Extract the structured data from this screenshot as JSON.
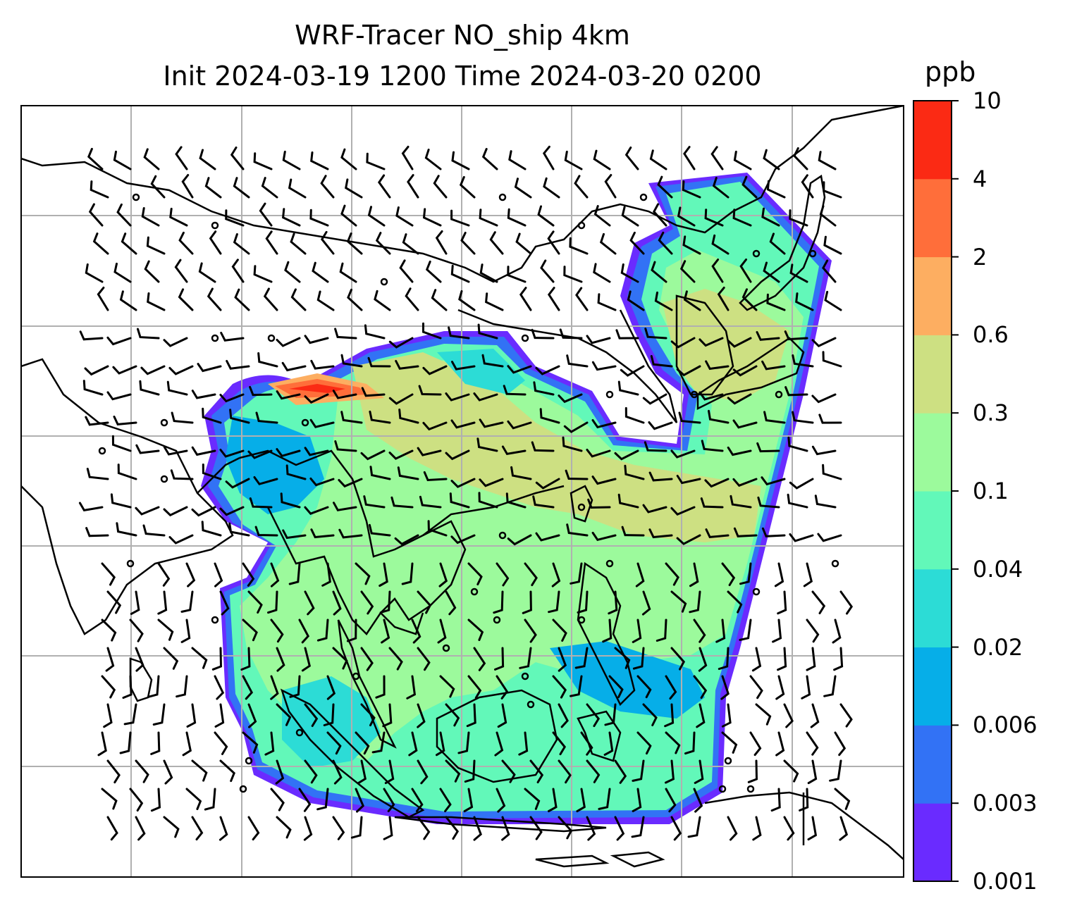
{
  "figure": {
    "title_line1": "WRF-Tracer NO_ship 4km",
    "title_line2": "Init 2024-03-19 1200 Time 2024-03-20 0200"
  },
  "colorbar": {
    "title": "ppb",
    "levels": [
      "0.001",
      "0.003",
      "0.006",
      "0.02",
      "0.04",
      "0.1",
      "0.3",
      "0.6",
      "2",
      "4",
      "10"
    ],
    "colors": [
      "#6a2bff",
      "#3272f5",
      "#06aee8",
      "#2cdcd6",
      "#62f8b9",
      "#9cfa9c",
      "#cde082",
      "#fdae61",
      "#ff6e3a",
      "#fb2a14"
    ]
  },
  "map": {
    "field": "NO_ship tracer concentration",
    "units": "ppb",
    "overlay": "wind barbs",
    "calm_marker": "open circle",
    "gridlines": "light gray graticule",
    "coastlines": "black outlines"
  }
}
